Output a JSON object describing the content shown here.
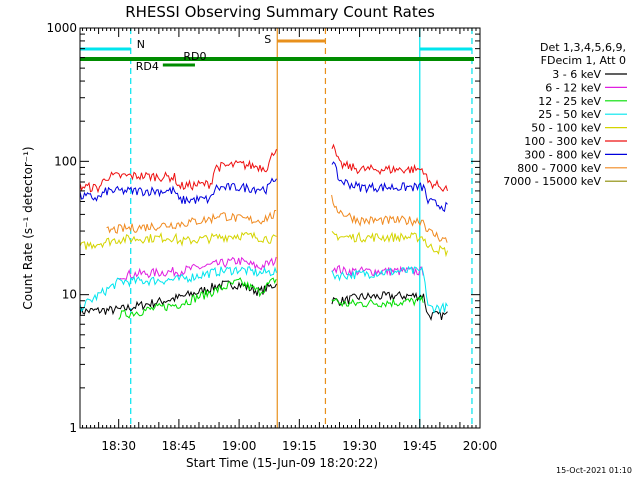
{
  "chart_data": {
    "type": "line",
    "title": "RHESSI Observing Summary Count Rates",
    "ylabel": "Count Rate (s⁻¹ detector⁻¹)",
    "xlabel": "Start Time (15-Jun-09 18:20:22)",
    "yscale": "log",
    "ylim": [
      1,
      1000
    ],
    "y_ticks": [
      "1",
      "10",
      "100",
      "1000"
    ],
    "x_range": [
      "18:20:22",
      "20:00:00"
    ],
    "x_ticks": [
      "18:30",
      "18:45",
      "19:00",
      "19:15",
      "19:30",
      "19:45",
      "20:00"
    ],
    "grid": false,
    "legend_position": "right",
    "legend_header": [
      "Det 1,3,4,5,6,9,",
      "FDecim 1, Att 0"
    ],
    "timestamp": "15-Oct-2021 01:10",
    "flag_labels": {
      "N": "N",
      "S": "S",
      "RD0": "RD0",
      "RD4": "RD4"
    },
    "flags": {
      "N": {
        "color": "#00e5ee",
        "intervals": [
          [
            "18:20:22",
            "18:33:00"
          ],
          [
            "19:45:00",
            "19:58:00"
          ]
        ]
      },
      "S": {
        "color": "#e8901c",
        "intervals": [
          [
            "19:09:30",
            "19:21:30"
          ]
        ]
      },
      "RD0": {
        "color": "#008c00",
        "intervals": [
          [
            "18:20:22",
            "19:58:30"
          ]
        ]
      },
      "RD4": {
        "color": "#008c00",
        "intervals": [
          [
            "18:41:00",
            "18:49:00"
          ]
        ]
      }
    },
    "data_gap": [
      "19:09:30",
      "19:23:00"
    ],
    "series": [
      {
        "name": "3 - 6 keV",
        "color": "#000000",
        "x": [
          "18:20:22",
          "18:30:00",
          "18:45:00",
          "18:50:00",
          "18:55:00",
          "19:00:00",
          "19:05:00",
          "19:09:00",
          "19:24:00",
          "19:26:00",
          "19:30:00",
          "19:40:00",
          "19:46:00",
          "19:47:00",
          "19:52:00"
        ],
        "y": [
          7.5,
          7.7,
          9.5,
          10.5,
          11.8,
          12,
          10.5,
          12,
          9,
          9,
          9.6,
          9.8,
          9.8,
          7,
          7
        ]
      },
      {
        "name": "6 - 12 keV",
        "color": "#e020e0",
        "x": [
          "18:30:00",
          "18:45:00",
          "18:55:00",
          "19:00:00",
          "19:05:00",
          "19:09:00",
          "19:24:00",
          "19:26:00",
          "19:40:00",
          "19:46:00"
        ],
        "y": [
          14,
          15,
          17,
          18,
          16,
          18,
          16,
          15,
          15,
          15
        ]
      },
      {
        "name": "12 - 25 keV",
        "color": "#00dd00",
        "x": [
          "18:30:00",
          "18:45:00",
          "18:55:00",
          "19:00:00",
          "19:05:00",
          "19:09:00",
          "19:24:00",
          "19:26:00",
          "19:40:00",
          "19:46:00"
        ],
        "y": [
          7,
          8.5,
          11,
          12.5,
          10.5,
          13,
          9,
          8.5,
          8.8,
          9
        ]
      },
      {
        "name": "25 - 50 keV",
        "color": "#00e5ee",
        "x": [
          "18:20:22",
          "18:30:00",
          "18:45:00",
          "18:55:00",
          "19:00:00",
          "19:05:00",
          "19:09:00",
          "19:24:00",
          "19:26:00",
          "19:40:00",
          "19:46:00",
          "19:47:00",
          "19:52:00"
        ],
        "y": [
          8,
          12.5,
          13,
          15,
          15.5,
          14.5,
          15,
          14,
          14,
          15,
          15,
          8,
          8
        ]
      },
      {
        "name": "50 - 100 keV",
        "color": "#d4d400",
        "x": [
          "18:20:22",
          "18:30:00",
          "18:44:00",
          "18:45:00",
          "19:00:00",
          "19:05:00",
          "19:09:00",
          "19:24:00",
          "19:26:00",
          "19:30:00",
          "19:40:00",
          "19:46:00",
          "19:47:00",
          "19:52:00"
        ],
        "y": [
          23,
          26,
          27,
          25,
          28,
          27,
          26,
          28,
          27,
          27,
          27,
          27,
          23,
          21
        ]
      },
      {
        "name": "100 - 300 keV",
        "color": "#ee1111",
        "x": [
          "18:20:22",
          "18:25:00",
          "18:27:00",
          "18:35:00",
          "18:44:00",
          "18:45:00",
          "18:53:00",
          "18:54:00",
          "19:00:00",
          "19:07:00",
          "19:09:00",
          "19:22:30",
          "19:25:00",
          "19:30:00",
          "19:40:00",
          "19:46:00",
          "19:47:00",
          "19:52:00"
        ],
        "y": [
          65,
          63,
          77,
          78,
          76,
          65,
          68,
          90,
          95,
          90,
          125,
          150,
          95,
          87,
          87,
          87,
          70,
          62
        ]
      },
      {
        "name": "300 - 800 keV",
        "color": "#0000dd",
        "x": [
          "18:20:22",
          "18:25:00",
          "18:27:00",
          "18:35:00",
          "18:44:00",
          "18:45:00",
          "18:53:00",
          "18:54:00",
          "19:00:00",
          "19:07:00",
          "19:09:00",
          "19:22:30",
          "19:25:00",
          "19:30:00",
          "19:40:00",
          "19:46:00",
          "19:47:00",
          "19:52:00"
        ],
        "y": [
          55,
          53,
          60,
          60,
          60,
          51,
          52,
          63,
          64,
          62,
          75,
          115,
          72,
          64,
          64,
          64,
          50,
          45
        ]
      },
      {
        "name": "800 - 7000 keV",
        "color": "#f08a20",
        "x": [
          "18:27:00",
          "18:30:00",
          "18:45:00",
          "18:53:00",
          "18:55:00",
          "19:00:00",
          "19:05:00",
          "19:09:00",
          "19:22:30",
          "19:25:00",
          "19:30:00",
          "19:40:00",
          "19:46:00",
          "19:47:00",
          "19:52:00"
        ],
        "y": [
          30,
          31,
          34,
          37,
          40,
          37,
          36,
          40,
          55,
          42,
          36,
          36,
          36,
          30,
          25
        ]
      },
      {
        "name": "7000 - 15000 keV",
        "color": "#8a8a00",
        "x": [],
        "y": []
      }
    ]
  }
}
